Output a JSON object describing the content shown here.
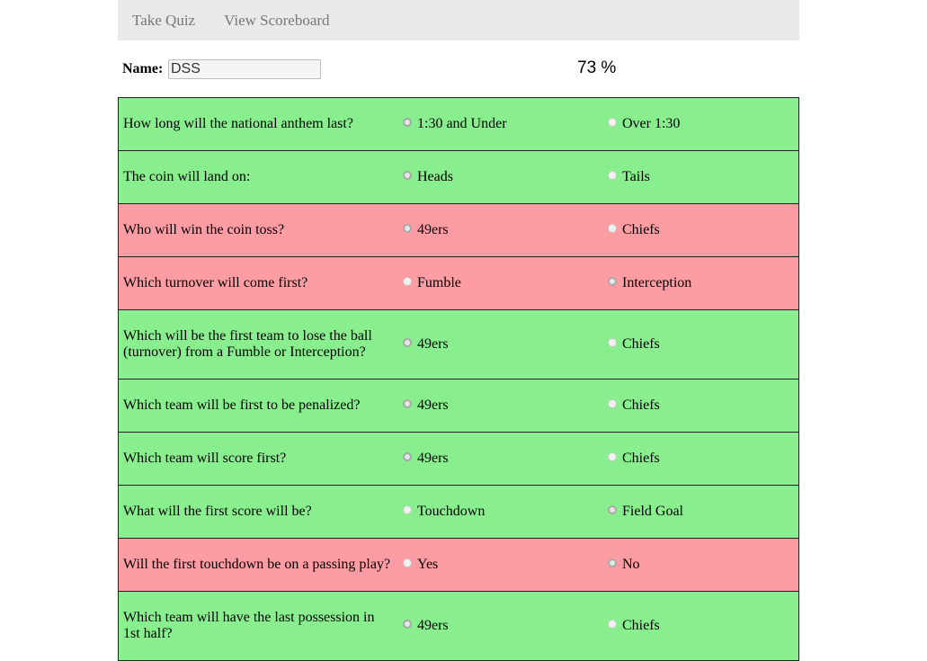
{
  "nav": {
    "take_quiz": "Take Quiz",
    "view_scoreboard": "View Scoreboard"
  },
  "header": {
    "name_label": "Name:",
    "name_value": "DSS",
    "score": "73 %"
  },
  "colors": {
    "correct": "#89ef8e",
    "wrong": "#fd9ca2",
    "nav_bg": "#e9e9e9"
  },
  "questions": [
    {
      "text": "How long will the national anthem last?",
      "option_a": "1:30 and Under",
      "option_b": "Over 1:30",
      "status": "correct",
      "selected": "a"
    },
    {
      "text": "The coin will land on:",
      "option_a": "Heads",
      "option_b": "Tails",
      "status": "correct",
      "selected": "a"
    },
    {
      "text": "Who will win the coin toss?",
      "option_a": "49ers",
      "option_b": "Chiefs",
      "status": "wrong",
      "selected": "a"
    },
    {
      "text": "Which turnover will come first?",
      "option_a": "Fumble",
      "option_b": "Interception",
      "status": "wrong",
      "selected": "b"
    },
    {
      "text": "Which will be the first team to lose the ball (turnover) from a Fumble or Interception?",
      "option_a": "49ers",
      "option_b": "Chiefs",
      "status": "correct",
      "selected": "a"
    },
    {
      "text": "Which team will be first to be penalized?",
      "option_a": "49ers",
      "option_b": "Chiefs",
      "status": "correct",
      "selected": "a"
    },
    {
      "text": "Which team will score first?",
      "option_a": "49ers",
      "option_b": "Chiefs",
      "status": "correct",
      "selected": "a"
    },
    {
      "text": "What will the first score will be?",
      "option_a": "Touchdown",
      "option_b": "Field Goal",
      "status": "correct",
      "selected": "b"
    },
    {
      "text": "Will the first touchdown be on a passing play?",
      "option_a": "Yes",
      "option_b": "No",
      "status": "wrong",
      "selected": "b"
    },
    {
      "text": "Which team will have the last possession in 1st half?",
      "option_a": "49ers",
      "option_b": "Chiefs",
      "status": "correct",
      "selected": "a"
    }
  ]
}
